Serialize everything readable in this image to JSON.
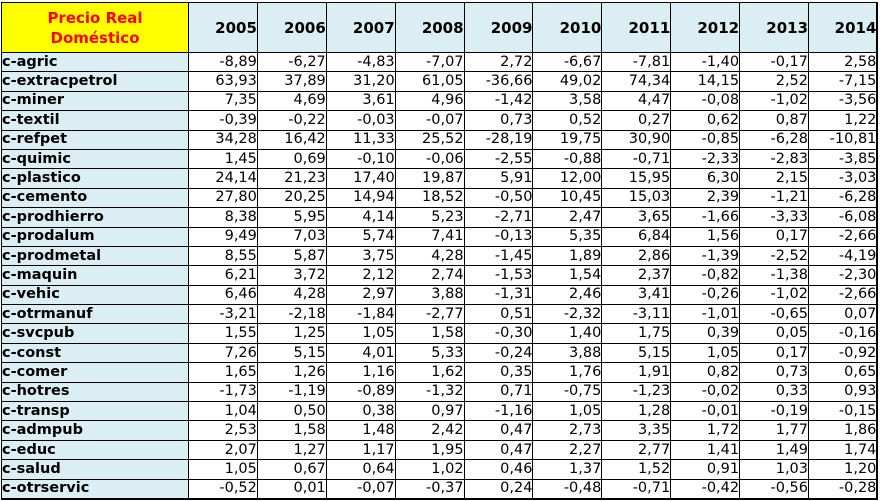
{
  "header": {
    "corner_label_line1": "Precio Real",
    "corner_label_line2": "Doméstico",
    "years": [
      "2005",
      "2006",
      "2007",
      "2008",
      "2009",
      "2010",
      "2011",
      "2012",
      "2013",
      "2014"
    ]
  },
  "rows": [
    {
      "sector": "c-agric",
      "values": [
        "-8,89",
        "-6,27",
        "-4,83",
        "-7,07",
        "2,72",
        "-6,67",
        "-7,81",
        "-1,40",
        "-0,17",
        "2,58"
      ]
    },
    {
      "sector": "c-extracpetrol",
      "values": [
        "63,93",
        "37,89",
        "31,20",
        "61,05",
        "-36,66",
        "49,02",
        "74,34",
        "14,15",
        "2,52",
        "-7,15"
      ]
    },
    {
      "sector": "c-miner",
      "values": [
        "7,35",
        "4,69",
        "3,61",
        "4,96",
        "-1,42",
        "3,58",
        "4,47",
        "-0,08",
        "-1,02",
        "-3,56"
      ]
    },
    {
      "sector": "c-textil",
      "values": [
        "-0,39",
        "-0,22",
        "-0,03",
        "-0,07",
        "0,73",
        "0,52",
        "0,27",
        "0,62",
        "0,87",
        "1,22"
      ]
    },
    {
      "sector": "c-refpet",
      "values": [
        "34,28",
        "16,42",
        "11,33",
        "25,52",
        "-28,19",
        "19,75",
        "30,90",
        "-0,85",
        "-6,28",
        "-10,81"
      ]
    },
    {
      "sector": "c-quimic",
      "values": [
        "1,45",
        "0,69",
        "-0,10",
        "-0,06",
        "-2,55",
        "-0,88",
        "-0,71",
        "-2,33",
        "-2,83",
        "-3,85"
      ]
    },
    {
      "sector": "c-plastico",
      "values": [
        "24,14",
        "21,23",
        "17,40",
        "19,87",
        "5,91",
        "12,00",
        "15,95",
        "6,30",
        "2,15",
        "-3,03"
      ]
    },
    {
      "sector": "c-cemento",
      "values": [
        "27,80",
        "20,25",
        "14,94",
        "18,52",
        "-0,50",
        "10,45",
        "15,03",
        "2,39",
        "-1,21",
        "-6,28"
      ]
    },
    {
      "sector": "c-prodhierro",
      "values": [
        "8,38",
        "5,95",
        "4,14",
        "5,23",
        "-2,71",
        "2,47",
        "3,65",
        "-1,66",
        "-3,33",
        "-6,08"
      ]
    },
    {
      "sector": "c-prodalum",
      "values": [
        "9,49",
        "7,03",
        "5,74",
        "7,41",
        "-0,13",
        "5,35",
        "6,84",
        "1,56",
        "0,17",
        "-2,66"
      ]
    },
    {
      "sector": "c-prodmetal",
      "values": [
        "8,55",
        "5,87",
        "3,75",
        "4,28",
        "-1,45",
        "1,89",
        "2,86",
        "-1,39",
        "-2,52",
        "-4,19"
      ]
    },
    {
      "sector": "c-maquin",
      "values": [
        "6,21",
        "3,72",
        "2,12",
        "2,74",
        "-1,53",
        "1,54",
        "2,37",
        "-0,82",
        "-1,38",
        "-2,30"
      ]
    },
    {
      "sector": "c-vehic",
      "values": [
        "6,46",
        "4,28",
        "2,97",
        "3,88",
        "-1,31",
        "2,46",
        "3,41",
        "-0,26",
        "-1,02",
        "-2,66"
      ]
    },
    {
      "sector": "c-otrmanuf",
      "values": [
        "-3,21",
        "-2,18",
        "-1,84",
        "-2,77",
        "0,51",
        "-2,32",
        "-3,11",
        "-1,01",
        "-0,65",
        "0,07"
      ]
    },
    {
      "sector": "c-svcpub",
      "values": [
        "1,55",
        "1,25",
        "1,05",
        "1,58",
        "-0,30",
        "1,40",
        "1,75",
        "0,39",
        "0,05",
        "-0,16"
      ]
    },
    {
      "sector": "c-const",
      "values": [
        "7,26",
        "5,15",
        "4,01",
        "5,33",
        "-0,24",
        "3,88",
        "5,15",
        "1,05",
        "0,17",
        "-0,92"
      ]
    },
    {
      "sector": "c-comer",
      "values": [
        "1,65",
        "1,26",
        "1,16",
        "1,62",
        "0,35",
        "1,76",
        "1,91",
        "0,82",
        "0,73",
        "0,65"
      ]
    },
    {
      "sector": "c-hotres",
      "values": [
        "-1,73",
        "-1,19",
        "-0,89",
        "-1,32",
        "0,71",
        "-0,75",
        "-1,23",
        "-0,02",
        "0,33",
        "0,93"
      ]
    },
    {
      "sector": "c-transp",
      "values": [
        "1,04",
        "0,50",
        "0,38",
        "0,97",
        "-1,16",
        "1,05",
        "1,28",
        "-0,01",
        "-0,19",
        "-0,15"
      ]
    },
    {
      "sector": "c-admpub",
      "values": [
        "2,53",
        "1,58",
        "1,48",
        "2,42",
        "0,47",
        "2,73",
        "3,35",
        "1,72",
        "1,77",
        "1,86"
      ]
    },
    {
      "sector": "c-educ",
      "values": [
        "2,07",
        "1,27",
        "1,17",
        "1,95",
        "0,47",
        "2,27",
        "2,77",
        "1,41",
        "1,49",
        "1,74"
      ]
    },
    {
      "sector": "c-salud",
      "values": [
        "1,05",
        "0,67",
        "0,64",
        "1,02",
        "0,46",
        "1,37",
        "1,52",
        "0,91",
        "1,03",
        "1,20"
      ]
    },
    {
      "sector": "c-otrservic",
      "values": [
        "-0,52",
        "0,01",
        "-0,07",
        "-0,37",
        "0,24",
        "-0,48",
        "-0,71",
        "-0,42",
        "-0,56",
        "-0,28"
      ]
    }
  ],
  "colors": {
    "corner_bg": "#ffff00",
    "corner_text": "#ff0000",
    "header_bg": "#dbeef4"
  }
}
